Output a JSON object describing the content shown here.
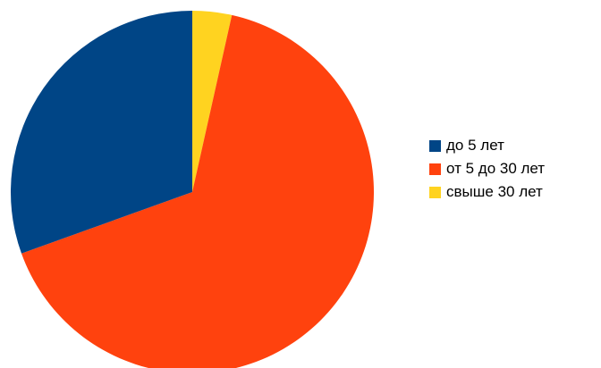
{
  "chart_data": {
    "type": "pie",
    "title": "",
    "legend_position": "right",
    "slices": [
      {
        "label": "свыше 30 лет",
        "value": 3.5,
        "color": "#ffd320"
      },
      {
        "label": "от 5 до 30 лет",
        "value": 66.0,
        "color": "#ff420e"
      },
      {
        "label": "до 5 лет",
        "value": 30.5,
        "color": "#004586"
      }
    ],
    "legend": [
      {
        "label": "до 5 лет",
        "color": "#004586"
      },
      {
        "label": "от 5 до 30 лет",
        "color": "#ff420e"
      },
      {
        "label": "свыше 30 лет",
        "color": "#ffd320"
      }
    ]
  }
}
